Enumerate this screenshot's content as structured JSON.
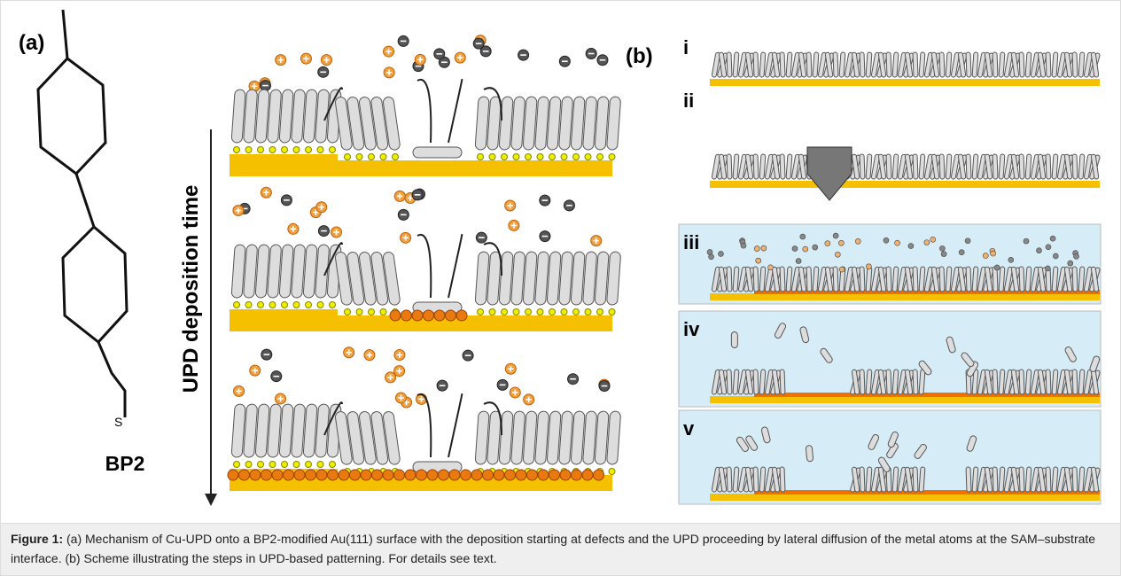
{
  "panel_a": {
    "label": "(a)",
    "molecule_atom": "S",
    "molecule_name": "BP2",
    "axis_label": "UPD deposition time"
  },
  "panel_b": {
    "label": "(b)",
    "steps": [
      "i",
      "ii",
      "iii",
      "iv",
      "v"
    ]
  },
  "caption": {
    "label": "Figure 1:",
    "text": "(a) Mechanism of Cu-UPD onto a BP2-modified Au(111) surface with the deposition starting at defects and the UPD proceeding by lateral diffusion of the metal atoms at the SAM–substrate interface. (b) Scheme illustrating the steps in UPD-based patterning. For details see text."
  }
}
